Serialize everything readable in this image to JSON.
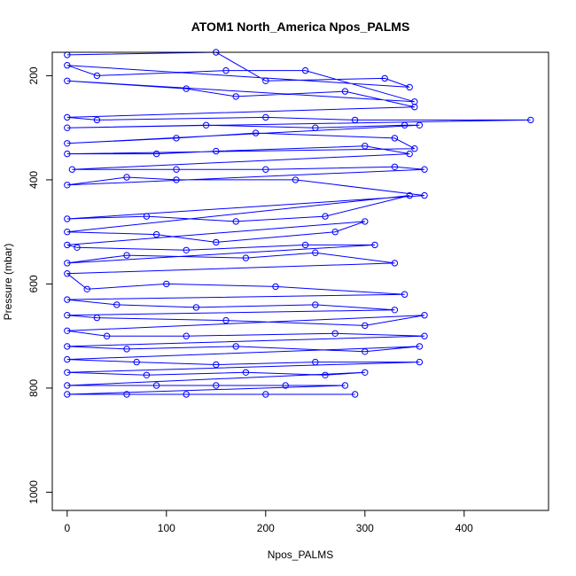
{
  "chart_data": {
    "type": "scatter",
    "title": "ATOM1 North_America Npos_PALMS",
    "xlabel": "Npos_PALMS",
    "ylabel": "Pressure (mbar)",
    "xlim": [
      -15,
      485
    ],
    "ylim": [
      1035,
      155
    ],
    "y_reversed": true,
    "xticks": [
      0,
      100,
      200,
      300,
      400
    ],
    "yticks": [
      200,
      400,
      600,
      800,
      1000
    ],
    "grid": false,
    "legend": "none",
    "color": "#0000ff",
    "series": [
      {
        "values": [
          [
            0,
            160
          ],
          [
            150,
            155
          ],
          [
            200,
            210
          ],
          [
            320,
            205
          ],
          [
            345,
            222
          ],
          [
            0,
            180
          ],
          [
            30,
            200
          ],
          [
            160,
            190
          ],
          [
            240,
            190
          ],
          [
            350,
            250
          ],
          [
            0,
            210
          ],
          [
            120,
            225
          ],
          [
            170,
            240
          ],
          [
            280,
            230
          ],
          [
            350,
            260
          ],
          [
            0,
            280
          ],
          [
            30,
            285
          ],
          [
            200,
            280
          ],
          [
            290,
            285
          ],
          [
            467,
            285
          ],
          [
            0,
            300
          ],
          [
            140,
            295
          ],
          [
            250,
            300
          ],
          [
            340,
            295
          ],
          [
            355,
            295
          ],
          [
            0,
            330
          ],
          [
            110,
            320
          ],
          [
            190,
            310
          ],
          [
            330,
            320
          ],
          [
            350,
            340
          ],
          [
            0,
            350
          ],
          [
            90,
            350
          ],
          [
            150,
            345
          ],
          [
            300,
            335
          ],
          [
            345,
            350
          ],
          [
            5,
            380
          ],
          [
            110,
            380
          ],
          [
            200,
            380
          ],
          [
            330,
            375
          ],
          [
            360,
            380
          ],
          [
            0,
            410
          ],
          [
            60,
            395
          ],
          [
            110,
            400
          ],
          [
            230,
            400
          ],
          [
            360,
            430
          ],
          [
            0,
            475
          ],
          [
            80,
            470
          ],
          [
            170,
            480
          ],
          [
            260,
            470
          ],
          [
            345,
            430
          ],
          [
            0,
            500
          ],
          [
            90,
            505
          ],
          [
            150,
            520
          ],
          [
            270,
            500
          ],
          [
            300,
            480
          ],
          [
            0,
            525
          ],
          [
            10,
            530
          ],
          [
            120,
            535
          ],
          [
            240,
            525
          ],
          [
            310,
            525
          ],
          [
            0,
            560
          ],
          [
            60,
            545
          ],
          [
            180,
            550
          ],
          [
            250,
            540
          ],
          [
            330,
            560
          ],
          [
            0,
            580
          ],
          [
            20,
            610
          ],
          [
            100,
            600
          ],
          [
            210,
            605
          ],
          [
            340,
            620
          ],
          [
            0,
            630
          ],
          [
            50,
            640
          ],
          [
            130,
            645
          ],
          [
            250,
            640
          ],
          [
            330,
            650
          ],
          [
            0,
            660
          ],
          [
            30,
            665
          ],
          [
            160,
            670
          ],
          [
            300,
            680
          ],
          [
            360,
            660
          ],
          [
            0,
            690
          ],
          [
            40,
            700
          ],
          [
            120,
            700
          ],
          [
            270,
            695
          ],
          [
            360,
            700
          ],
          [
            0,
            720
          ],
          [
            60,
            725
          ],
          [
            170,
            720
          ],
          [
            300,
            730
          ],
          [
            355,
            720
          ],
          [
            0,
            745
          ],
          [
            70,
            750
          ],
          [
            150,
            755
          ],
          [
            250,
            750
          ],
          [
            355,
            750
          ],
          [
            0,
            770
          ],
          [
            80,
            775
          ],
          [
            180,
            770
          ],
          [
            260,
            775
          ],
          [
            300,
            770
          ],
          [
            0,
            795
          ],
          [
            90,
            795
          ],
          [
            150,
            795
          ],
          [
            220,
            795
          ],
          [
            280,
            795
          ],
          [
            0,
            812
          ],
          [
            60,
            812
          ],
          [
            120,
            812
          ],
          [
            200,
            812
          ],
          [
            290,
            812
          ]
        ]
      }
    ]
  }
}
